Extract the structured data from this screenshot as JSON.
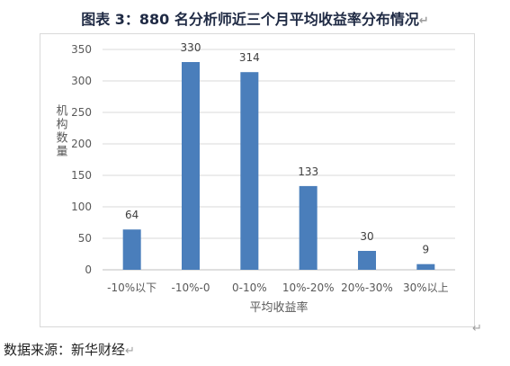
{
  "page": {
    "title": "图表 3：880 名分析师近三个月平均收益率分布情况",
    "source": "数据来源：新华财经",
    "paragraph_mark": "↵"
  },
  "chart_data": {
    "type": "bar",
    "title": "",
    "xlabel": "平均收益率",
    "ylabel": "机构数量",
    "categories": [
      "-10%以下",
      "-10%-0",
      "0-10%",
      "10%-20%",
      "20%-30%",
      "30%以上"
    ],
    "values": [
      64,
      330,
      314,
      133,
      30,
      9
    ],
    "ylim": [
      0,
      350
    ],
    "yticks": [
      0,
      50,
      100,
      150,
      200,
      250,
      300,
      350
    ],
    "grid": true,
    "data_labels": true,
    "bar_color": "#4a7ebb",
    "grid_color": "#d9d9d9"
  }
}
